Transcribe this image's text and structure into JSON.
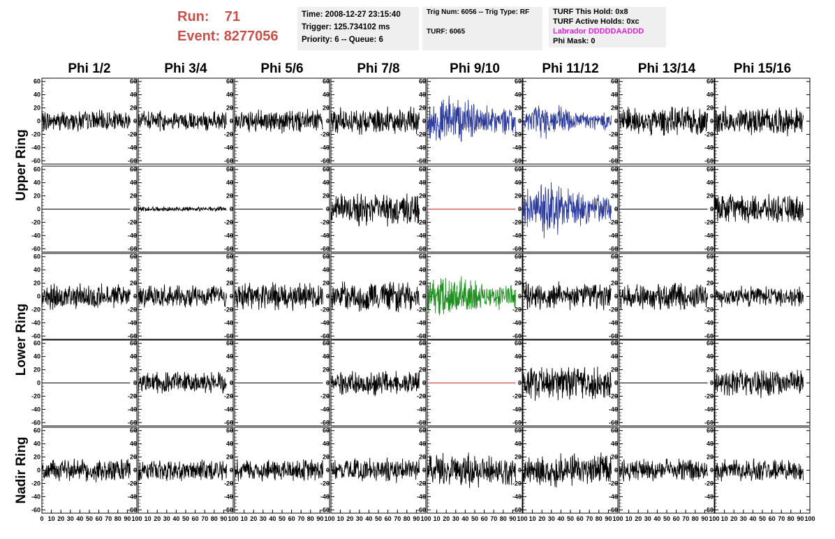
{
  "header": {
    "run_label": "Run:",
    "run_value": "71",
    "event_label": "Event:",
    "event_value": "8277056"
  },
  "info_panel_1": {
    "time": "Time: 2008-12-27 23:15:40",
    "trigger": "Trigger: 125.734102 ms",
    "priority": "Priority: 6 -- Queue: 6"
  },
  "info_panel_2": {
    "trig": "Trig Num: 6056 -- Trig Type: RF",
    "turf": "TURF: 6065"
  },
  "info_panel_3": {
    "hold": "TURF This Hold: 0x8",
    "active": "TURF Active Holds: 0xc",
    "labrador": "Labrador DDDDDAADDD",
    "phimask": "Phi Mask: 0"
  },
  "chart_data": {
    "type": "line",
    "columns": [
      "Phi 1/2",
      "Phi 3/4",
      "Phi 5/6",
      "Phi 7/8",
      "Phi 9/10",
      "Phi 11/12",
      "Phi 13/14",
      "Phi 15/16"
    ],
    "row_groups": [
      {
        "label": "Upper Ring",
        "rows": [
          0,
          1
        ]
      },
      {
        "label": "Lower Ring",
        "rows": [
          2,
          3
        ]
      },
      {
        "label": "Nadir Ring",
        "rows": [
          4
        ]
      }
    ],
    "xlim": [
      0,
      100
    ],
    "ylim": [
      -65,
      65
    ],
    "x_ticks": [
      "0",
      "10",
      "20",
      "30",
      "40",
      "50",
      "60",
      "70",
      "80",
      "90",
      "100"
    ],
    "y_ticks": [
      "60",
      "40",
      "20",
      "0",
      "-20",
      "-40",
      "-60"
    ],
    "trace_color_default": "#000000",
    "trigger_color": "#2b3a9a",
    "lower_trigger_color": "#1e8f1e",
    "empty_color": "#c03030",
    "panels": [
      [
        {
          "amp": 13,
          "color": "#000000"
        },
        {
          "amp": 12,
          "color": "#000000"
        },
        {
          "amp": 14,
          "color": "#000000"
        },
        {
          "amp": 17,
          "color": "#000000"
        },
        {
          "amp": 24,
          "color": "#2b3a9a"
        },
        {
          "amp": 16,
          "color": "#2b3a9a"
        },
        {
          "amp": 17,
          "color": "#000000"
        },
        {
          "amp": 17,
          "color": "#000000"
        }
      ],
      [
        {
          "amp": 0,
          "color": "#000000"
        },
        {
          "amp": 3,
          "color": "#000000"
        },
        {
          "amp": 0,
          "color": "#000000"
        },
        {
          "amp": 20,
          "color": "#000000"
        },
        {
          "amp": 0,
          "color": "#c03030"
        },
        {
          "amp": 26,
          "color": "#2b3a9a"
        },
        {
          "amp": 0,
          "color": "#000000"
        },
        {
          "amp": 17,
          "color": "#000000"
        }
      ],
      [
        {
          "amp": 15,
          "color": "#000000"
        },
        {
          "amp": 14,
          "color": "#000000"
        },
        {
          "amp": 17,
          "color": "#000000"
        },
        {
          "amp": 18,
          "color": "#000000"
        },
        {
          "amp": 22,
          "color": "#1e8f1e"
        },
        {
          "amp": 17,
          "color": "#000000"
        },
        {
          "amp": 16,
          "color": "#000000"
        },
        {
          "amp": 13,
          "color": "#000000"
        }
      ],
      [
        {
          "amp": 0,
          "color": "#000000"
        },
        {
          "amp": 14,
          "color": "#000000"
        },
        {
          "amp": 0,
          "color": "#000000"
        },
        {
          "amp": 15,
          "color": "#000000"
        },
        {
          "amp": 0,
          "color": "#c03030"
        },
        {
          "amp": 22,
          "color": "#000000"
        },
        {
          "amp": 0,
          "color": "#000000"
        },
        {
          "amp": 17,
          "color": "#000000"
        }
      ],
      [
        {
          "amp": 14,
          "color": "#000000"
        },
        {
          "amp": 13,
          "color": "#000000"
        },
        {
          "amp": 14,
          "color": "#000000"
        },
        {
          "amp": 14,
          "color": "#000000"
        },
        {
          "amp": 20,
          "color": "#000000"
        },
        {
          "amp": 20,
          "color": "#000000"
        },
        {
          "amp": 14,
          "color": "#000000"
        },
        {
          "amp": 14,
          "color": "#000000"
        }
      ]
    ]
  }
}
